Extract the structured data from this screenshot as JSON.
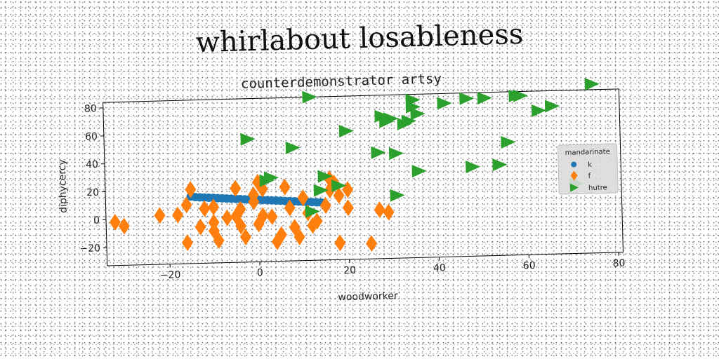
{
  "main_title": "whirlabout losableness",
  "chart_data": {
    "type": "scatter",
    "title": "counterdemonstrator artsy",
    "xlabel": "woodworker",
    "ylabel": "diphycercy",
    "xlim": [
      -34,
      81
    ],
    "ylim": [
      -33,
      84
    ],
    "xticks": [
      -20,
      0,
      20,
      40,
      60,
      80
    ],
    "yticks": [
      -20,
      0,
      20,
      40,
      60,
      80
    ],
    "grid": false,
    "legend": {
      "title": "mandarinate",
      "placement": "right"
    },
    "series": [
      {
        "name": "k",
        "marker": "circle",
        "color": "#1f77b4",
        "points": [
          [
            -15,
            15
          ],
          [
            -14,
            14.5
          ],
          [
            -13,
            14.2
          ],
          [
            -12,
            14
          ],
          [
            -11,
            13.8
          ],
          [
            -10,
            13.6
          ],
          [
            -9,
            13.3
          ],
          [
            -8,
            13.1
          ],
          [
            -7,
            12.9
          ],
          [
            -6,
            12.7
          ],
          [
            -5,
            12.5
          ],
          [
            -4,
            12.2
          ],
          [
            -3,
            12
          ],
          [
            -2,
            11.8
          ],
          [
            -1,
            11.6
          ],
          [
            0,
            11.4
          ],
          [
            1,
            11.1
          ],
          [
            2,
            10.9
          ],
          [
            3,
            10.7
          ],
          [
            4,
            10.5
          ],
          [
            5,
            10.3
          ],
          [
            6,
            10
          ],
          [
            7,
            9.8
          ],
          [
            8,
            9.6
          ],
          [
            9,
            9.4
          ],
          [
            10,
            9.2
          ],
          [
            11,
            8.9
          ],
          [
            12,
            8.7
          ],
          [
            13,
            8.5
          ],
          [
            14,
            8.3
          ]
        ]
      },
      {
        "name": "f",
        "marker": "diamond",
        "color": "#ff7f0e",
        "points": [
          [
            -32,
            -2
          ],
          [
            -30,
            -5
          ],
          [
            -22,
            2
          ],
          [
            -18,
            2
          ],
          [
            -16,
            9
          ],
          [
            -15,
            20
          ],
          [
            -16,
            -18
          ],
          [
            -13,
            -7
          ],
          [
            -12,
            6
          ],
          [
            -10,
            7
          ],
          [
            -10,
            -4
          ],
          [
            -10,
            -10
          ],
          [
            -9,
            -17
          ],
          [
            -7,
            -1
          ],
          [
            -5,
            20
          ],
          [
            -5,
            0
          ],
          [
            -4,
            5
          ],
          [
            -4,
            -7
          ],
          [
            -3,
            -15
          ],
          [
            -1,
            15
          ],
          [
            -1,
            10
          ],
          [
            0,
            24
          ],
          [
            0,
            -6
          ],
          [
            1,
            19
          ],
          [
            1,
            0
          ],
          [
            3,
            -1
          ],
          [
            4,
            -19
          ],
          [
            5,
            -14
          ],
          [
            6,
            20
          ],
          [
            7,
            5
          ],
          [
            8,
            -9
          ],
          [
            9,
            -16
          ],
          [
            10,
            12
          ],
          [
            11,
            1
          ],
          [
            12,
            -8
          ],
          [
            13,
            -5
          ],
          [
            15,
            6
          ],
          [
            16,
            25
          ],
          [
            16,
            17
          ],
          [
            17,
            22
          ],
          [
            18,
            13
          ],
          [
            18,
            -21
          ],
          [
            20,
            17
          ],
          [
            20,
            4
          ],
          [
            25,
            -22
          ],
          [
            27,
            2
          ],
          [
            29,
            0
          ]
        ]
      },
      {
        "name": "hutre",
        "marker": "triangle-right",
        "color": "#2ca02c",
        "points": [
          [
            12,
            84
          ],
          [
            -2,
            55
          ],
          [
            2,
            25
          ],
          [
            3,
            27
          ],
          [
            8,
            48
          ],
          [
            12,
            2
          ],
          [
            14,
            17
          ],
          [
            15,
            27
          ],
          [
            18,
            20
          ],
          [
            20,
            59
          ],
          [
            27,
            43
          ],
          [
            28,
            69
          ],
          [
            29,
            65
          ],
          [
            30,
            67
          ],
          [
            31,
            42
          ],
          [
            31,
            12
          ],
          [
            33,
            63
          ],
          [
            34,
            65
          ],
          [
            35,
            75
          ],
          [
            35,
            80
          ],
          [
            36,
            70
          ],
          [
            36,
            29
          ],
          [
            42,
            77
          ],
          [
            47,
            80
          ],
          [
            48,
            31
          ],
          [
            51,
            80
          ],
          [
            54,
            32
          ],
          [
            56,
            48
          ],
          [
            58,
            81
          ],
          [
            59,
            81
          ],
          [
            63,
            70
          ],
          [
            66,
            73
          ],
          [
            71,
            17
          ],
          [
            75,
            88
          ]
        ]
      }
    ]
  }
}
